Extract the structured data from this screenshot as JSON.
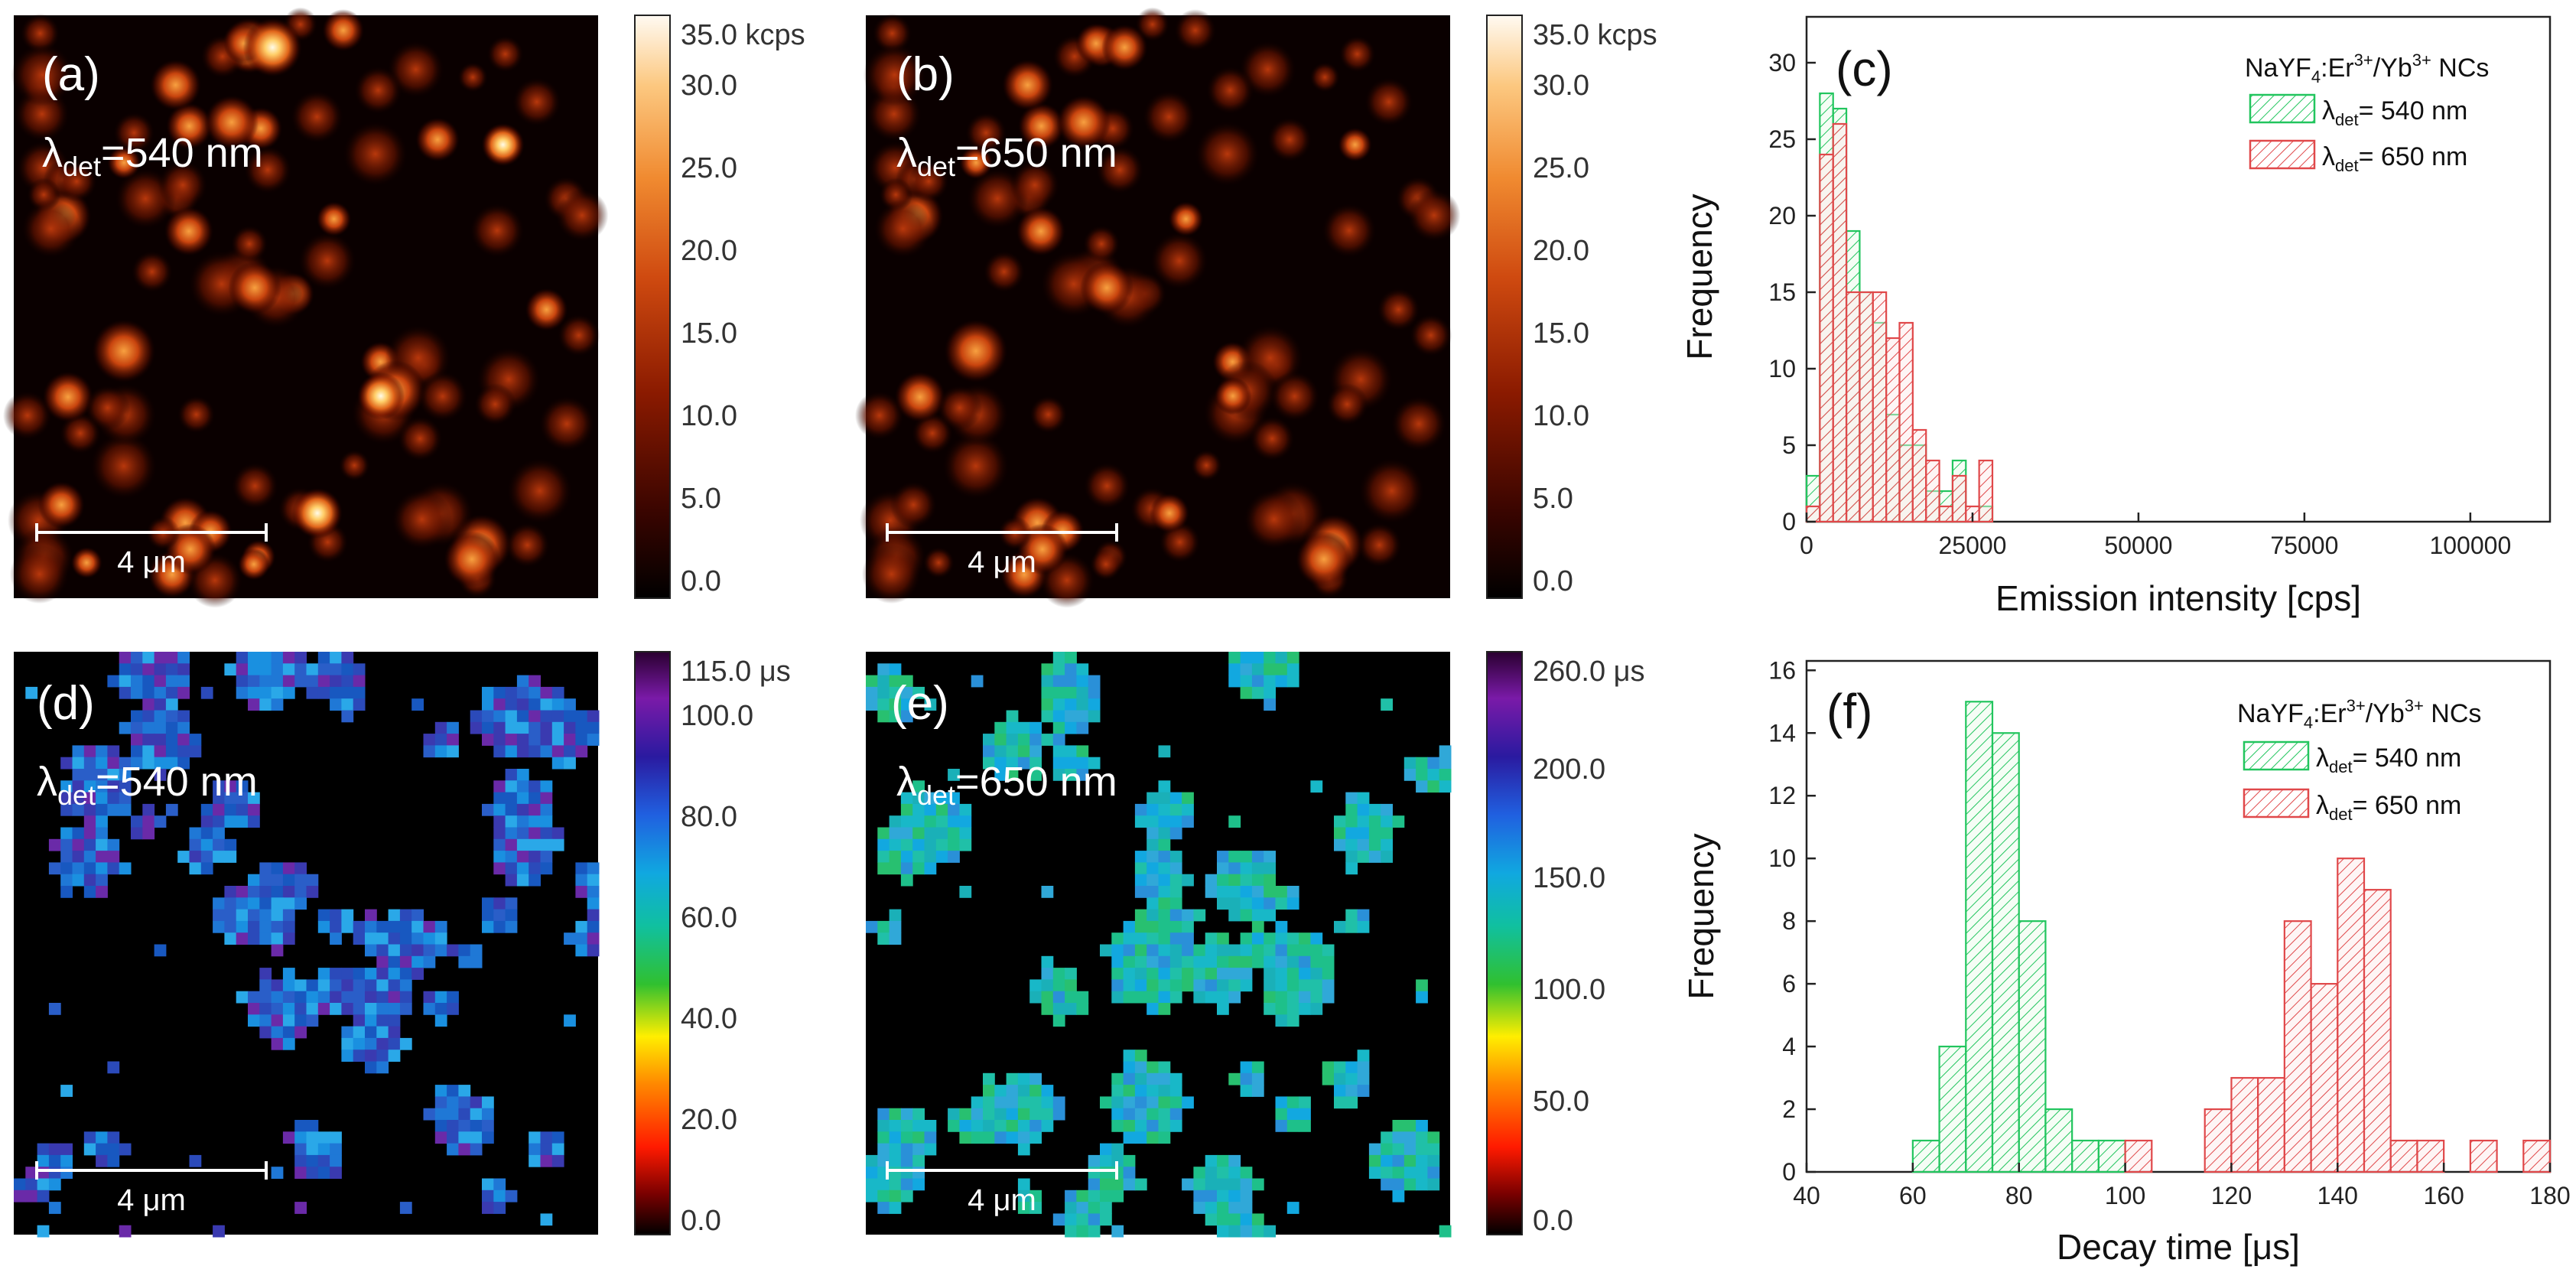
{
  "panels": {
    "a": {
      "label": "(a)",
      "lambda_sym": "λ",
      "lambda_sub": "det",
      "lambda_val": "=540 nm",
      "scalebar": "4 μm"
    },
    "b": {
      "label": "(b)",
      "lambda_sym": "λ",
      "lambda_sub": "det",
      "lambda_val": "=650 nm",
      "scalebar": "4 μm"
    },
    "d": {
      "label": "(d)",
      "lambda_sym": "λ",
      "lambda_sub": "det",
      "lambda_val": "=540 nm",
      "scalebar": "4 μm"
    },
    "e": {
      "label": "(e)",
      "lambda_sym": "λ",
      "lambda_sub": "det",
      "lambda_val": "=650 nm",
      "scalebar": "4 μm"
    }
  },
  "colorbars": {
    "a": {
      "ticks": [
        "35.0 kcps",
        "30.0",
        "25.0",
        "20.0",
        "15.0",
        "10.0",
        "5.0",
        "0.0"
      ],
      "max": 35,
      "colormap": "hot"
    },
    "b": {
      "ticks": [
        "35.0 kcps",
        "30.0",
        "25.0",
        "20.0",
        "15.0",
        "10.0",
        "5.0",
        "0.0"
      ],
      "max": 35,
      "colormap": "hot"
    },
    "d": {
      "ticks": [
        "115.0 μs",
        "100.0",
        "80.0",
        "60.0",
        "40.0",
        "20.0",
        "0.0"
      ],
      "values": [
        115,
        100,
        80,
        60,
        40,
        20,
        0
      ],
      "max": 115,
      "colormap": "rainbow"
    },
    "e": {
      "ticks": [
        "260.0 μs",
        "200.0",
        "150.0",
        "100.0",
        "50.0",
        "0.0"
      ],
      "values": [
        260,
        200,
        150,
        100,
        50,
        0
      ],
      "max": 260,
      "colormap": "rainbow"
    }
  },
  "colors": {
    "green": "#22c55e",
    "red": "#e0484a",
    "green_fill": "#e9fbe9",
    "red_fill": "#fde8e8"
  },
  "chart_data": [
    {
      "type": "bar",
      "panel_label": "(c)",
      "title": "NaYF4:Er3+/Yb3+ NCs",
      "legend_title": {
        "pre": "NaYF",
        "s1": "4",
        "mid": ":Er",
        "p1": "3+",
        "mid2": "/Yb",
        "p2": "3+",
        "post": " NCs"
      },
      "legend_placement": "top-right",
      "xlabel": "Emission intensity [cps]",
      "ylabel": "Frequency",
      "xlim": [
        0,
        112000
      ],
      "ylim": [
        0,
        33
      ],
      "xticks": [
        0,
        25000,
        50000,
        75000,
        100000
      ],
      "yticks": [
        0,
        5,
        10,
        15,
        20,
        25,
        30
      ],
      "bin_width": 2000,
      "series": [
        {
          "name": "λdet= 540 nm",
          "legend": {
            "sym": "λ",
            "sub": "det",
            "val": "= 540 nm"
          },
          "color": "green",
          "bins_start": [
            0,
            2000,
            4000,
            6000,
            8000,
            10000,
            12000,
            14000,
            16000,
            18000,
            20000,
            22000,
            24000,
            26000
          ],
          "values": [
            3,
            28,
            27,
            19,
            15,
            13,
            7,
            5,
            5,
            2,
            2,
            4,
            0,
            1
          ]
        },
        {
          "name": "λdet= 650 nm",
          "legend": {
            "sym": "λ",
            "sub": "det",
            "val": "= 650 nm"
          },
          "color": "red",
          "bins_start": [
            0,
            2000,
            4000,
            6000,
            8000,
            10000,
            12000,
            14000,
            16000,
            18000,
            20000,
            22000,
            24000,
            26000,
            28000
          ],
          "values": [
            1,
            24,
            26,
            15,
            15,
            15,
            12,
            13,
            6,
            4,
            1,
            3,
            1,
            4,
            0
          ]
        }
      ]
    },
    {
      "type": "bar",
      "panel_label": "(f)",
      "title": "NaYF4:Er3+/Yb3+ NCs",
      "legend_title": {
        "pre": "NaYF",
        "s1": "4",
        "mid": ":Er",
        "p1": "3+",
        "mid2": "/Yb",
        "p2": "3+",
        "post": " NCs"
      },
      "legend_placement": "top-right",
      "xlabel": "Decay time [μs]",
      "ylabel": "Frequency",
      "xlim": [
        40,
        180
      ],
      "ylim": [
        0,
        16.3
      ],
      "xticks": [
        40,
        60,
        80,
        100,
        120,
        140,
        160,
        180
      ],
      "yticks": [
        0,
        2,
        4,
        6,
        8,
        10,
        12,
        14,
        16
      ],
      "bin_width": 5,
      "series": [
        {
          "name": "λdet= 540 nm",
          "legend": {
            "sym": "λ",
            "sub": "det",
            "val": "= 540 nm"
          },
          "color": "green",
          "bins_start": [
            60,
            65,
            70,
            75,
            80,
            85,
            90,
            95
          ],
          "values": [
            1,
            4,
            15,
            14,
            8,
            2,
            1,
            1
          ]
        },
        {
          "name": "λdet= 650 nm",
          "legend": {
            "sym": "λ",
            "sub": "det",
            "val": "= 650 nm"
          },
          "color": "red",
          "bins_start": [
            100,
            115,
            120,
            125,
            130,
            135,
            140,
            145,
            150,
            155,
            165,
            175
          ],
          "values": [
            1,
            2,
            3,
            3,
            8,
            6,
            10,
            9,
            1,
            1,
            1,
            1
          ]
        }
      ]
    }
  ]
}
